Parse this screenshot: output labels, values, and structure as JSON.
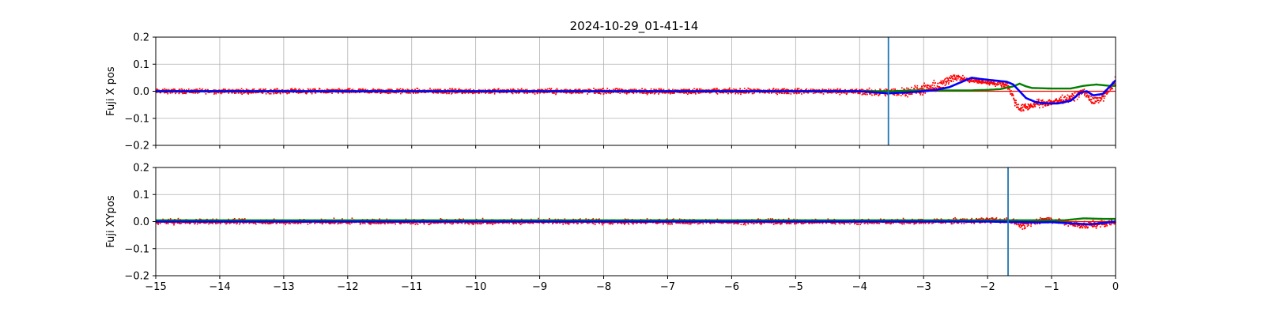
{
  "chart_data": {
    "title": "2024-10-29_01-41-14",
    "type": "scatter",
    "xlim": [
      -15,
      0
    ],
    "x_ticks": [
      "−15",
      "−14",
      "−13",
      "−12",
      "−11",
      "−10",
      "−9",
      "−8",
      "−7",
      "−6",
      "−5",
      "−4",
      "−3",
      "−2",
      "−1",
      "0"
    ],
    "x_tick_values": [
      -15,
      -14,
      -13,
      -12,
      -11,
      -10,
      -9,
      -8,
      -7,
      -6,
      -5,
      -4,
      -3,
      -2,
      -1,
      0
    ],
    "grid": true,
    "colors": {
      "raw": "#ff0000",
      "smooth": "#0000ff",
      "secondary": "#008000",
      "marker": "#1f77b4",
      "zero_line": "#ff0000"
    },
    "panels": [
      {
        "ylabel": "Fuji X pos",
        "ylim": [
          -0.2,
          0.2
        ],
        "y_ticks": [
          "−0.2",
          "−0.1",
          "0.0",
          "0.1",
          "0.2"
        ],
        "y_tick_values": [
          -0.2,
          -0.1,
          0.0,
          0.1,
          0.2
        ],
        "vline_x": -3.55,
        "series": [
          {
            "style": "scatter-band",
            "color": "#ff0000",
            "x": [
              -15,
              -4.2,
              -3.6,
              -3.2,
              -2.9,
              -2.65,
              -2.55,
              -2.45,
              -2.3,
              -2.1,
              -1.9,
              -1.7,
              -1.6,
              -1.55,
              -1.5,
              -1.35,
              -1.2,
              -1.0,
              -0.8,
              -0.65,
              -0.5,
              -0.35,
              -0.2,
              -0.05,
              0
            ],
            "center": [
              0,
              0,
              -0.005,
              0.0,
              0.01,
              0.03,
              0.055,
              0.05,
              0.04,
              0.035,
              0.03,
              0.025,
              -0.02,
              -0.05,
              -0.065,
              -0.055,
              -0.045,
              -0.04,
              -0.03,
              -0.02,
              0.0,
              -0.04,
              -0.02,
              0.02,
              0.04
            ],
            "spread": [
              0.012,
              0.014,
              0.02,
              0.025,
              0.03,
              0.03,
              0.025,
              0.015,
              0.012,
              0.012,
              0.012,
              0.015,
              0.025,
              0.02,
              0.02,
              0.02,
              0.02,
              0.02,
              0.02,
              0.02,
              0.02,
              0.025,
              0.02,
              0.02,
              0.03
            ]
          },
          {
            "style": "line",
            "color": "#008000",
            "x": [
              -15,
              -4.0,
              -3.5,
              -3.2,
              -2.7,
              -2.3,
              -2.0,
              -1.8,
              -1.6,
              -1.5,
              -1.4,
              -1.3,
              -1.0,
              -0.7,
              -0.5,
              -0.3,
              -0.1,
              0
            ],
            "y": [
              0.0,
              0.0,
              0.0,
              0.003,
              0.003,
              0.003,
              0.005,
              0.008,
              0.018,
              0.028,
              0.018,
              0.012,
              0.01,
              0.01,
              0.02,
              0.025,
              0.02,
              0.02
            ]
          },
          {
            "style": "line",
            "color": "#0000ff",
            "x": [
              -15,
              -4.0,
              -3.55,
              -3.3,
              -3.0,
              -2.8,
              -2.6,
              -2.4,
              -2.25,
              -2.1,
              -1.9,
              -1.7,
              -1.6,
              -1.5,
              -1.4,
              -1.25,
              -1.1,
              -0.9,
              -0.7,
              -0.55,
              -0.45,
              -0.35,
              -0.2,
              -0.1,
              0
            ],
            "y": [
              0.0,
              0.0,
              -0.008,
              -0.005,
              0.0,
              0.005,
              0.015,
              0.035,
              0.05,
              0.045,
              0.04,
              0.035,
              0.025,
              0.0,
              -0.025,
              -0.04,
              -0.045,
              -0.045,
              -0.035,
              -0.005,
              0.0,
              -0.015,
              -0.01,
              0.015,
              0.04
            ]
          }
        ]
      },
      {
        "ylabel": "Fuji XYpos",
        "ylim": [
          -0.2,
          0.2
        ],
        "y_ticks": [
          "−0.2",
          "−0.1",
          "0.0",
          "0.1",
          "0.2"
        ],
        "y_tick_values": [
          -0.2,
          -0.1,
          0.0,
          0.1,
          0.2
        ],
        "vline_x": -1.68,
        "series": [
          {
            "style": "scatter-band",
            "color": "#ff0000",
            "x": [
              -15,
              -3.0,
              -2.0,
              -1.6,
              -1.45,
              -1.3,
              -1.1,
              -0.9,
              -0.6,
              -0.5,
              -0.3,
              -0.1,
              0
            ],
            "center": [
              0,
              0,
              0.005,
              0.003,
              -0.015,
              -0.005,
              0.01,
              0.0,
              -0.01,
              -0.015,
              -0.01,
              -0.005,
              0.0
            ],
            "spread": [
              0.013,
              0.013,
              0.014,
              0.014,
              0.018,
              0.016,
              0.015,
              0.015,
              0.018,
              0.02,
              0.018,
              0.016,
              0.016
            ]
          },
          {
            "style": "line",
            "color": "#008000",
            "x": [
              -15,
              -0.8,
              -0.5,
              -0.2,
              0
            ],
            "y": [
              0.005,
              0.005,
              0.012,
              0.01,
              0.01
            ]
          },
          {
            "style": "line",
            "color": "#0000ff",
            "x": [
              -15,
              -2.0,
              -1.5,
              -1.2,
              -1.0,
              -0.8,
              -0.6,
              -0.4,
              -0.2,
              0
            ],
            "y": [
              0.0,
              0.0,
              -0.002,
              -0.003,
              -0.002,
              -0.005,
              -0.008,
              -0.01,
              -0.005,
              0.0
            ]
          }
        ]
      }
    ]
  }
}
